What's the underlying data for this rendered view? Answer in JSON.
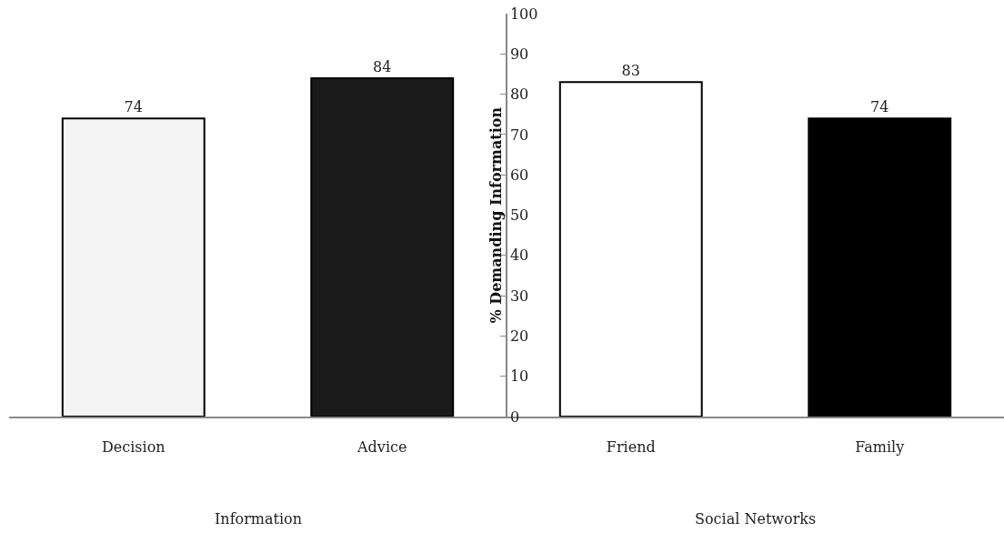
{
  "chart_data": {
    "type": "bar",
    "ylabel": "% Demanding Information",
    "categories": [
      "Decision",
      "Advice",
      "Friend",
      "Family"
    ],
    "values": [
      74,
      84,
      83,
      74
    ],
    "colors": [
      "#f4f4f4",
      "#1a1a1a",
      "#ffffff",
      "#000000"
    ],
    "ylim": [
      0,
      100
    ],
    "yticks": [
      0,
      10,
      20,
      30,
      40,
      50,
      60,
      70,
      80,
      90,
      100
    ],
    "grid": false,
    "data_labels": true,
    "annotations": [
      "Information",
      "Social Networks"
    ]
  }
}
